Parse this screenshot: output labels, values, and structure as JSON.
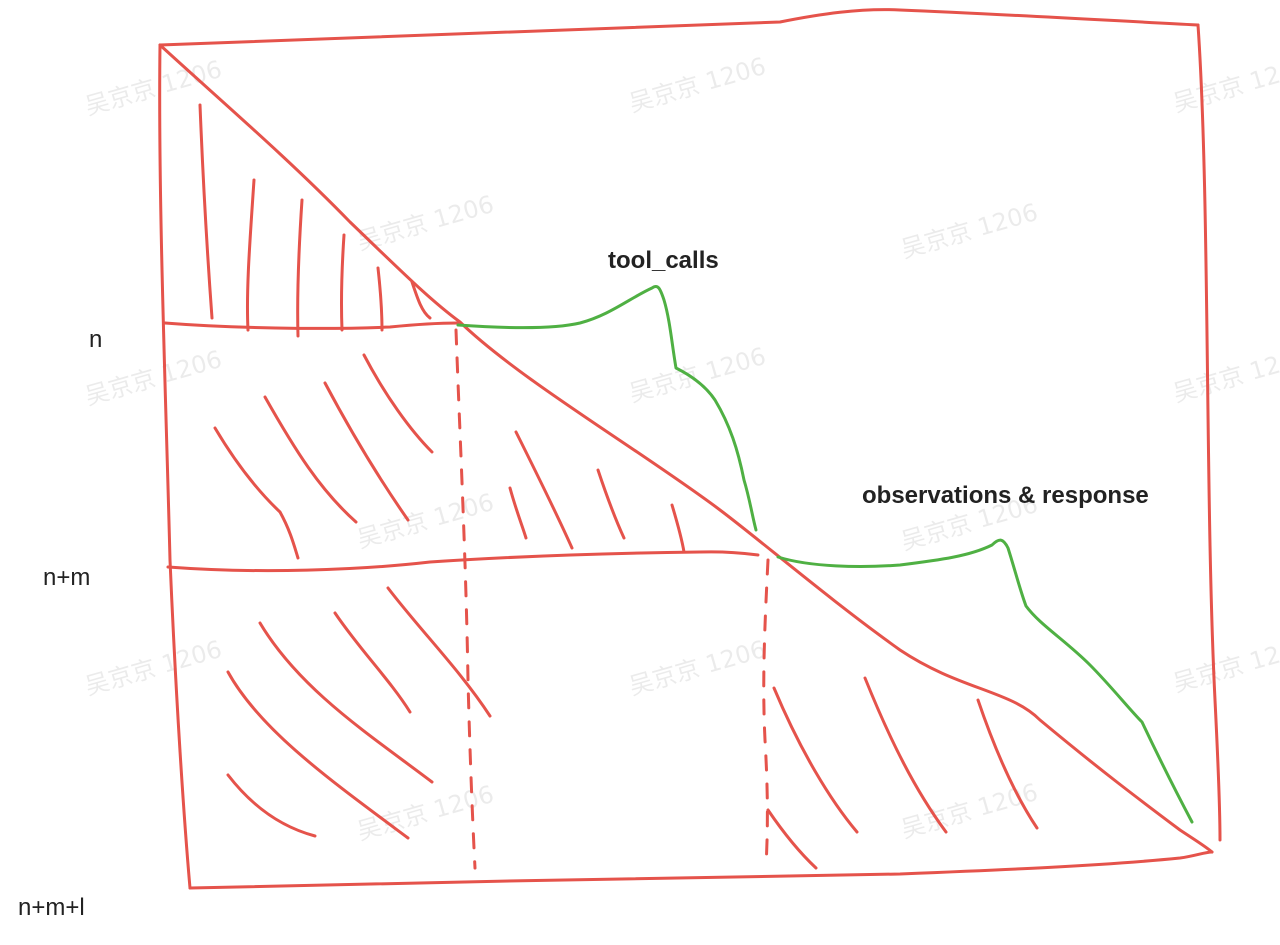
{
  "diagram": {
    "title_tool_calls": "tool_calls",
    "title_observations": "observations & response",
    "axis_labels": [
      "n",
      "n+m",
      "n+m+l"
    ],
    "watermark": "吴京京 1206",
    "colors": {
      "mask_lines": "#e5534b",
      "annotation_curves": "#4fb043",
      "text": "#222222"
    }
  }
}
